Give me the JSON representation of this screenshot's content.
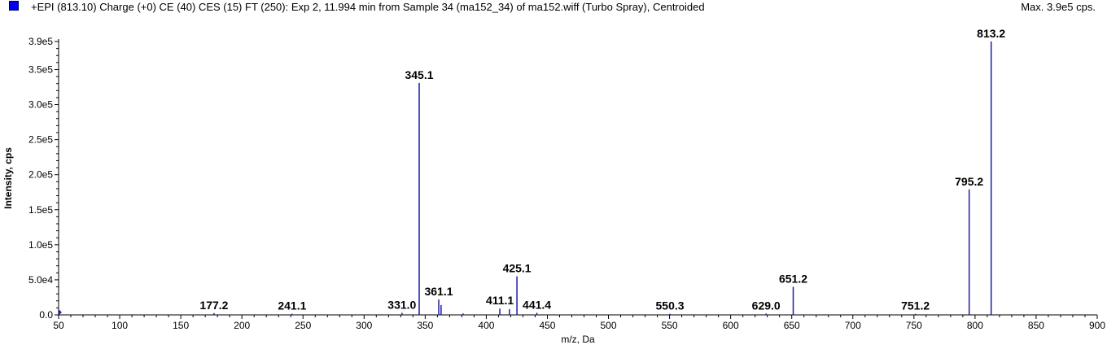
{
  "header": {
    "title": "+EPI (813.10) Charge (+0) CE (40) CES (15) FT (250): Exp 2, 11.994 min from Sample 34 (ma152_34) of ma152.wiff (Turbo Spray), Centroided",
    "max": "Max. 3.9e5 cps."
  },
  "colors": {
    "peak": "#1a1aa6",
    "swatch": "#0000ee",
    "axis": "#000000"
  },
  "chart_data": {
    "type": "bar",
    "title": "+EPI (813.10) Charge (+0) CE (40) CES (15) FT (250): Exp 2, 11.994 min from Sample 34 (ma152_34) of ma152.wiff (Turbo Spray), Centroided",
    "xlabel": "m/z, Da",
    "ylabel": "Intensity, cps",
    "xlim": [
      50,
      900
    ],
    "ylim": [
      0,
      400000
    ],
    "x_ticks": [
      50,
      100,
      150,
      200,
      250,
      300,
      350,
      400,
      450,
      500,
      550,
      600,
      650,
      700,
      750,
      800,
      850,
      900
    ],
    "x_tick_labels": [
      "50",
      "100",
      "150",
      "200",
      "250",
      "300",
      "350",
      "400",
      "450",
      "500",
      "550",
      "600",
      "650",
      "700",
      "750",
      "800",
      "850",
      "900"
    ],
    "y_ticks": [
      0,
      50000,
      100000,
      150000,
      200000,
      250000,
      300000,
      350000,
      390000
    ],
    "y_tick_labels": [
      "0.0",
      "5.0e4",
      "1.0e5",
      "1.5e5",
      "2.0e5",
      "2.5e5",
      "3.0e5",
      "3.5e5",
      "3.9e5"
    ],
    "peaks": [
      {
        "mz": 50.5,
        "intensity": 6000
      },
      {
        "mz": 177.2,
        "intensity": 2500,
        "label": "177.2"
      },
      {
        "mz": 241.1,
        "intensity": 1500,
        "label": "241.1"
      },
      {
        "mz": 331.0,
        "intensity": 3000,
        "label": "331.0"
      },
      {
        "mz": 345.1,
        "intensity": 331000,
        "label": "345.1"
      },
      {
        "mz": 361.1,
        "intensity": 22000,
        "label": "361.1"
      },
      {
        "mz": 363.0,
        "intensity": 14000
      },
      {
        "mz": 381.0,
        "intensity": 2000
      },
      {
        "mz": 411.1,
        "intensity": 9000,
        "label": "411.1"
      },
      {
        "mz": 419.0,
        "intensity": 8000
      },
      {
        "mz": 425.1,
        "intensity": 55000,
        "label": "425.1"
      },
      {
        "mz": 441.4,
        "intensity": 3000,
        "label": "441.4"
      },
      {
        "mz": 550.3,
        "intensity": 1500,
        "label": "550.3"
      },
      {
        "mz": 629.0,
        "intensity": 2000,
        "label": "629.0"
      },
      {
        "mz": 651.2,
        "intensity": 40000,
        "label": "651.2"
      },
      {
        "mz": 751.2,
        "intensity": 1500,
        "label": "751.2"
      },
      {
        "mz": 795.2,
        "intensity": 179000,
        "label": "795.2"
      },
      {
        "mz": 813.2,
        "intensity": 390000,
        "label": "813.2"
      }
    ],
    "grid": false
  }
}
